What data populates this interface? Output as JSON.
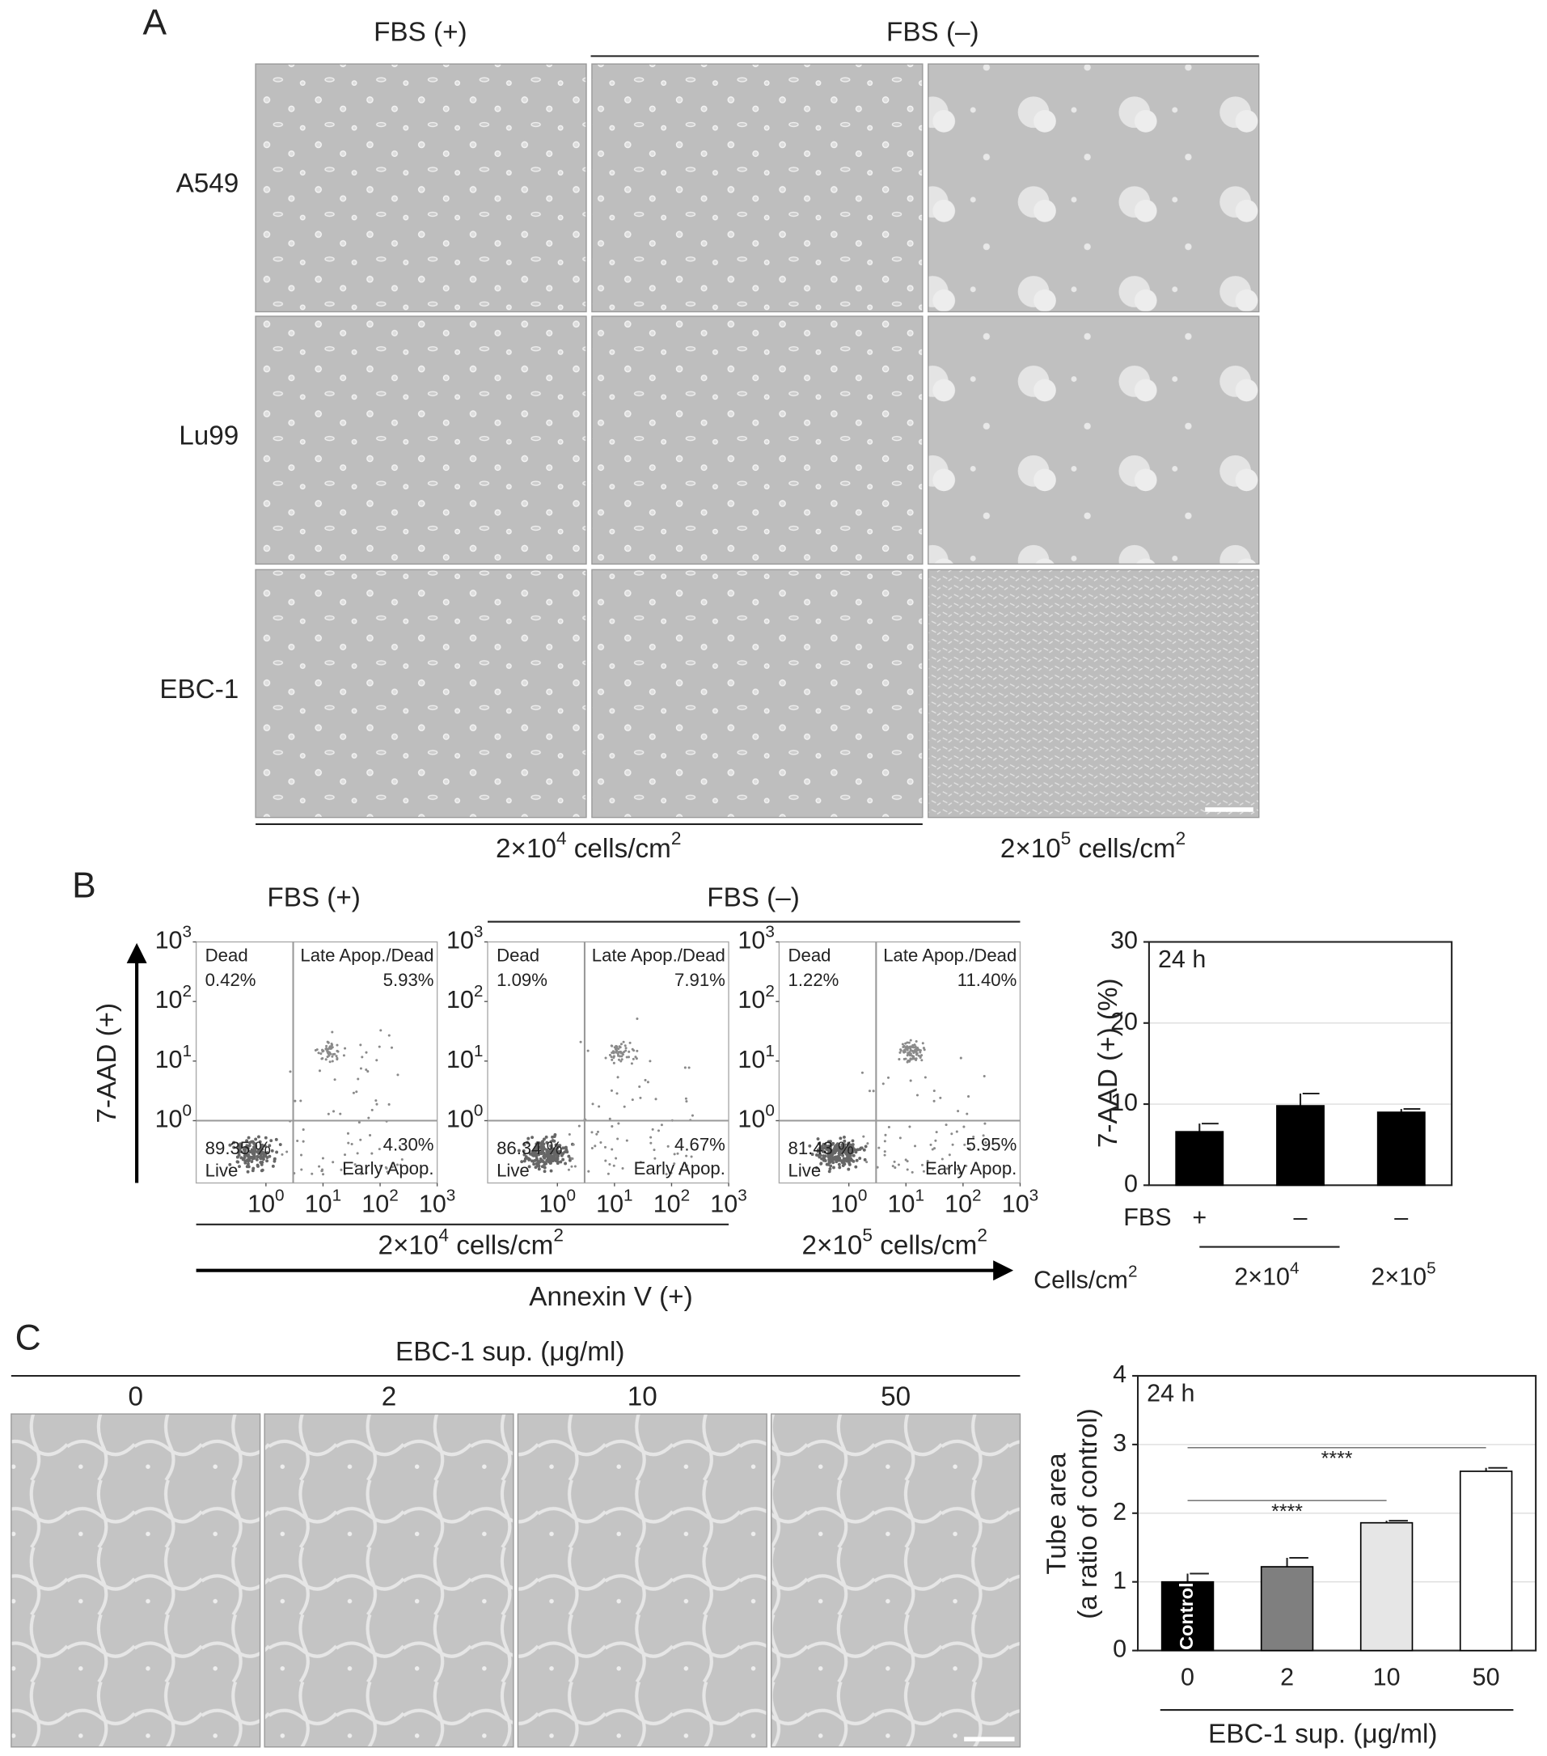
{
  "panel_a": {
    "label": "A",
    "col_headers": [
      "FBS (+)",
      "FBS (–)"
    ],
    "rows": [
      "A549",
      "Lu99",
      "EBC-1"
    ],
    "densities": [
      [
        "2×10",
        "4",
        " cells/cm",
        "2"
      ],
      [
        "2×10",
        "5",
        " cells/cm",
        "2"
      ]
    ]
  },
  "panel_b": {
    "label": "B",
    "col_headers": [
      "FBS (+)",
      "FBS (–)"
    ],
    "densities": [
      [
        "2×10",
        "4",
        " cells/cm",
        "2"
      ],
      [
        "2×10",
        "5",
        " cells/cm",
        "2"
      ]
    ],
    "flow": {
      "type": "scatter",
      "xlabel": "Annexin V (+)",
      "ylabel": "7-AAD (+)",
      "log_scale": true,
      "xlim": [
        0.06,
        1000
      ],
      "ylim": [
        0.09,
        1000
      ],
      "xticks": [
        {
          "value": 1,
          "label": [
            "10",
            "0"
          ]
        },
        {
          "value": 10,
          "label": [
            "10",
            "1"
          ]
        },
        {
          "value": 100,
          "label": [
            "10",
            "2"
          ]
        },
        {
          "value": 1000,
          "label": [
            "10",
            "3"
          ]
        }
      ],
      "yticks": [
        {
          "value": 1,
          "label": [
            "10",
            "0"
          ]
        },
        {
          "value": 10,
          "label": [
            "10",
            "1"
          ]
        },
        {
          "value": 100,
          "label": [
            "10",
            "2"
          ]
        },
        {
          "value": 1000,
          "label": [
            "10",
            "3"
          ]
        }
      ],
      "gates": {
        "x": 3,
        "y": 1
      },
      "quadrant_names": {
        "ul": "Dead",
        "ur": "Late Apop./Dead",
        "ll": "Live",
        "lr": "Early Apop."
      },
      "plots": [
        {
          "ul": "0.42%",
          "ur": "5.93%",
          "ll": "89.35 %",
          "lr": "4.30%"
        },
        {
          "ul": "1.09%",
          "ur": "7.91%",
          "ll": "86.34 %",
          "lr": "4.67%"
        },
        {
          "ul": "1.22%",
          "ur": "11.40%",
          "ll": "81.43 %",
          "lr": "5.95%"
        }
      ]
    }
  },
  "panel_c": {
    "label": "C",
    "header": "EBC-1 sup. (μg/ml)",
    "columns": [
      "0",
      "2",
      "10",
      "50"
    ]
  },
  "chart_data": [
    {
      "type": "bar",
      "title": "24 h",
      "ylabel": "7-AAD (+) (%)",
      "ylim": [
        0,
        30
      ],
      "yticks": [
        0,
        10,
        20,
        30
      ],
      "grid": true,
      "color": "#000000",
      "category_axis_label": "FBS",
      "categories": [
        "+",
        "–",
        "–"
      ],
      "values": [
        6.6,
        9.8,
        9.0
      ],
      "errors": [
        1.0,
        1.5,
        0.4
      ],
      "group_axis_label": [
        "Cells/cm",
        "2"
      ],
      "groups": [
        [
          "2×10",
          "4"
        ],
        [
          "2×10",
          "5"
        ]
      ]
    },
    {
      "type": "bar",
      "title": "24 h",
      "ylabel": [
        "Tube area",
        "(a ratio of control)"
      ],
      "xlabel": "EBC-1 sup. (μg/ml)",
      "ylim": [
        0,
        4
      ],
      "yticks": [
        0,
        1,
        2,
        3,
        4
      ],
      "grid": true,
      "categories": [
        "0",
        "2",
        "10",
        "50"
      ],
      "colors": [
        "#000000",
        "#7f7f7f",
        "#e6e6e6",
        "#ffffff"
      ],
      "values": [
        1.0,
        1.22,
        1.86,
        2.61
      ],
      "errors": [
        0.12,
        0.13,
        0.03,
        0.05
      ],
      "bar_label": "Control",
      "significance": [
        {
          "from": 0,
          "to": 3,
          "label": "****"
        },
        {
          "from": 0,
          "to": 2,
          "label": "****"
        }
      ]
    }
  ]
}
